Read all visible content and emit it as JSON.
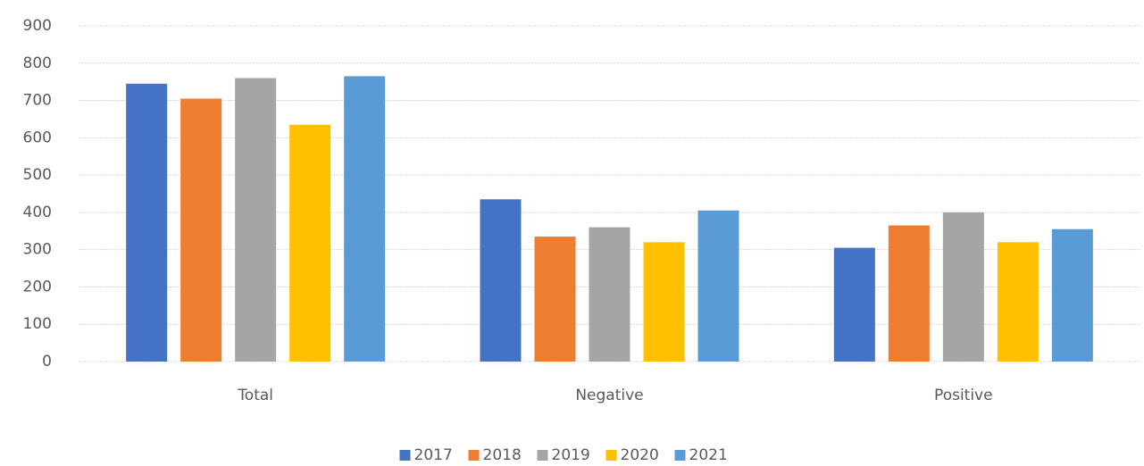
{
  "chart_data": {
    "type": "bar",
    "categories": [
      "Total",
      "Negative",
      "Positive"
    ],
    "series": [
      {
        "name": "2017",
        "color": "#4472c4",
        "values": [
          745,
          435,
          305
        ]
      },
      {
        "name": "2018",
        "color": "#ed7d31",
        "values": [
          705,
          335,
          365
        ]
      },
      {
        "name": "2019",
        "color": "#a5a5a5",
        "values": [
          760,
          360,
          400
        ]
      },
      {
        "name": "2020",
        "color": "#ffc000",
        "values": [
          635,
          320,
          320
        ]
      },
      {
        "name": "2021",
        "color": "#5b9bd5",
        "values": [
          765,
          405,
          355
        ]
      }
    ],
    "ylim": [
      0,
      900
    ],
    "yticks": [
      0,
      100,
      200,
      300,
      400,
      500,
      600,
      700,
      800,
      900
    ],
    "grid": true,
    "legend": "bottom"
  }
}
